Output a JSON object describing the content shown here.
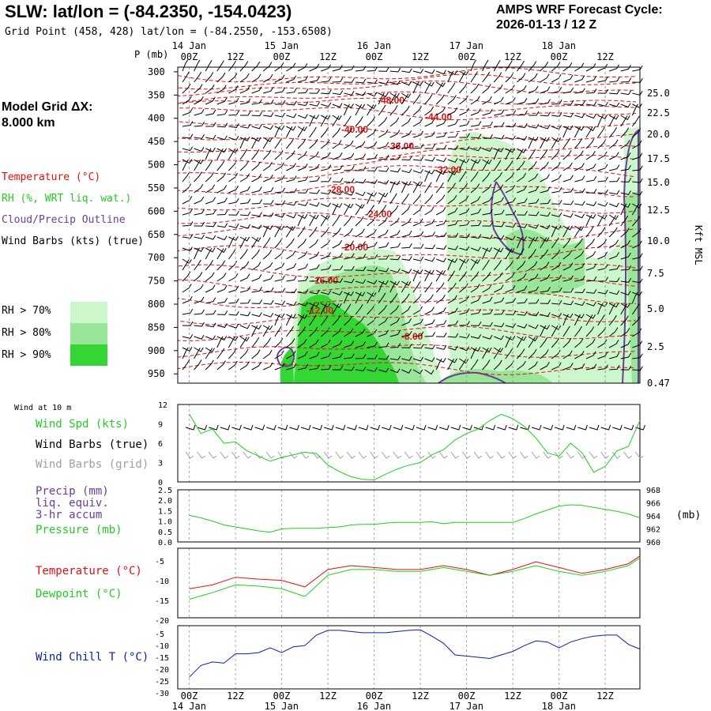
{
  "header": {
    "title": "SLW:  lat/lon = (-84.2350, -154.0423)",
    "subtitle": "Grid Point (458, 428) lat/lon = (-84.2550, -153.6508)",
    "cycle_line1": "AMPS WRF Forecast Cycle:",
    "cycle_line2": "2026-01-13 / 12  Z"
  },
  "model_grid": {
    "line1": "Model Grid ΔX:",
    "line2": " 8.000 km"
  },
  "legend": {
    "temperature": "Temperature (°C)",
    "rh": "RH (%, WRT liq. wat.)",
    "cloud": "Cloud/Precip Outline",
    "wind": "Wind Barbs (kts) (true)",
    "rh70": "RH > 70%",
    "rh80": "RH > 80%",
    "rh90": "RH > 90%"
  },
  "colors": {
    "temperature": "#e01010",
    "rh70": "#ccf7cc",
    "rh80": "#99e699",
    "rh90": "#33d633",
    "cloud": "#6a3d9a",
    "green_line": "#22cc22",
    "wind_chill": "#0a1fa0",
    "grid_barbs": "#a0a0a0"
  },
  "time_axis": {
    "top_dates": [
      "14 Jan",
      "15 Jan",
      "16 Jan",
      "17 Jan",
      "18 Jan"
    ],
    "hour_labels": [
      "00Z",
      "12Z",
      "00Z",
      "12Z",
      "00Z",
      "12Z",
      "00Z",
      "12Z",
      "00Z",
      "12Z"
    ],
    "bottom_dates": [
      "14 Jan",
      "15 Jan",
      "16 Jan",
      "17 Jan",
      "18 Jan"
    ]
  },
  "chart_data": [
    {
      "type": "contour",
      "name": "vertical cross-section",
      "pressure_axis_label": "P (mb)",
      "pressure_levels": [
        300,
        350,
        400,
        450,
        500,
        550,
        600,
        650,
        700,
        750,
        800,
        850,
        900,
        950
      ],
      "height_axis_label": "Kft MSL",
      "height_labels": [
        "25.0",
        "22.5",
        "20.0",
        "17.5",
        "15.0",
        "12.5",
        "10.0",
        "7.5",
        "5.0",
        "2.5",
        "0.47"
      ],
      "temperature_contour_labels": [
        "-48.00",
        "-44.00",
        "-40.00",
        "-36.00",
        "-32.00",
        "-28.00",
        "-24.00",
        "-20.00",
        "-16.00",
        "-12.00",
        "-8.00"
      ]
    },
    {
      "type": "line",
      "name": "wind at 10 m",
      "panel_title": "Wind at 10 m",
      "labels": [
        "Wind Spd (kts)",
        "Wind Barbs (true)",
        "Wind Barbs (grid)"
      ],
      "y_ticks": [
        "12",
        "9",
        "6",
        "3",
        "0"
      ],
      "ylim": [
        0,
        12
      ],
      "x": [
        0,
        3,
        6,
        9,
        12,
        15,
        18,
        21,
        24,
        27,
        30,
        33,
        36,
        39,
        42,
        45,
        48,
        51,
        54,
        57,
        60,
        63,
        66,
        69,
        72,
        75,
        78,
        81,
        84,
        87,
        90,
        93,
        96,
        99,
        102,
        105,
        108,
        111,
        114,
        117
      ],
      "values": [
        10.5,
        7.5,
        8.2,
        6,
        6.2,
        4.8,
        4,
        3.2,
        3.8,
        4.2,
        4.6,
        4.4,
        2.6,
        1.6,
        0.8,
        0.4,
        0.3,
        1.2,
        2,
        2.6,
        3,
        4.2,
        5,
        6.5,
        7.5,
        8.2,
        9.5,
        10.5,
        9.8,
        8.6,
        6.8,
        4.5,
        4,
        6,
        4.5,
        1.5,
        2.4,
        4.8,
        5.5,
        9.5
      ]
    },
    {
      "type": "line",
      "name": "precipitation and pressure",
      "labels": [
        "Precip (mm)",
        "liq. equiv.",
        "3-hr accum",
        "Pressure (mb)"
      ],
      "left_ticks": [
        "2.5",
        "2.0",
        "1.5",
        "1.0",
        "0.5",
        "0.0"
      ],
      "right_ticks": [
        "968",
        "966",
        "964",
        "962",
        "960"
      ],
      "right_unit": "(mb)",
      "ylim": [
        960,
        968
      ],
      "x": [
        0,
        3,
        6,
        9,
        12,
        15,
        18,
        21,
        24,
        27,
        30,
        33,
        36,
        39,
        42,
        45,
        48,
        51,
        54,
        57,
        60,
        63,
        66,
        69,
        72,
        75,
        78,
        81,
        84,
        87,
        90,
        93,
        96,
        99,
        102,
        105,
        108,
        111,
        114,
        117
      ],
      "values": [
        964.1,
        963.7,
        963.2,
        962.6,
        962.3,
        962.0,
        961.7,
        961.5,
        962.0,
        962.1,
        962.1,
        962.1,
        962.2,
        962.3,
        962.6,
        962.7,
        962.7,
        962.9,
        963.0,
        963.0,
        963.0,
        963.1,
        962.8,
        963.0,
        963.0,
        963.0,
        963.0,
        963.0,
        963.0,
        963.6,
        964.3,
        964.9,
        965.5,
        965.7,
        965.6,
        965.3,
        965.0,
        964.7,
        964.3,
        963.7
      ]
    },
    {
      "type": "line",
      "name": "temperature and dewpoint",
      "labels": [
        "Temperature (°C)",
        "Dewpoint (°C)"
      ],
      "y_ticks": [
        "-5",
        "-10",
        "-15",
        "-20"
      ],
      "ylim": [
        -20,
        -2
      ],
      "x": [
        0,
        6,
        12,
        18,
        24,
        30,
        36,
        42,
        48,
        54,
        60,
        66,
        72,
        78,
        84,
        90,
        96,
        102,
        108,
        114,
        117
      ],
      "series": [
        {
          "name": "Temperature",
          "values": [
            -12.5,
            -11.5,
            -9.5,
            -10,
            -10.3,
            -12,
            -7.5,
            -6.5,
            -7,
            -7.5,
            -7.5,
            -6.5,
            -7.5,
            -9,
            -7.5,
            -5.5,
            -7,
            -8.5,
            -7.5,
            -6,
            -4
          ]
        },
        {
          "name": "Dewpoint",
          "values": [
            -15.2,
            -13.5,
            -11.5,
            -11.8,
            -12.5,
            -14.5,
            -9,
            -7.5,
            -7.5,
            -8,
            -8,
            -7,
            -8,
            -9,
            -8,
            -6.5,
            -8,
            -9,
            -8,
            -6.5,
            -4.5
          ]
        }
      ]
    },
    {
      "type": "line",
      "name": "wind chill",
      "labels": [
        "Wind Chill T (°C)"
      ],
      "y_ticks": [
        "-5",
        "-10",
        "-15",
        "-20",
        "-25",
        "-30"
      ],
      "ylim": [
        -30,
        -3
      ],
      "x": [
        0,
        3,
        6,
        9,
        12,
        15,
        18,
        21,
        24,
        27,
        30,
        33,
        36,
        39,
        42,
        45,
        48,
        51,
        54,
        57,
        60,
        63,
        66,
        69,
        72,
        75,
        78,
        81,
        84,
        87,
        90,
        93,
        96,
        99,
        102,
        105,
        108,
        111,
        114,
        117
      ],
      "values": [
        -25,
        -20,
        -18.5,
        -19,
        -15,
        -15,
        -14.5,
        -12.5,
        -14.5,
        -12,
        -11.5,
        -7,
        -5,
        -5,
        -5.5,
        -6,
        -6,
        -6,
        -5.5,
        -5,
        -4.8,
        -7.5,
        -10.5,
        -15.5,
        -16,
        -16.5,
        -17,
        -15.5,
        -14,
        -11.5,
        -9.5,
        -10,
        -12.5,
        -10,
        -8.5,
        -7.5,
        -7,
        -7,
        -11,
        -13
      ]
    }
  ]
}
